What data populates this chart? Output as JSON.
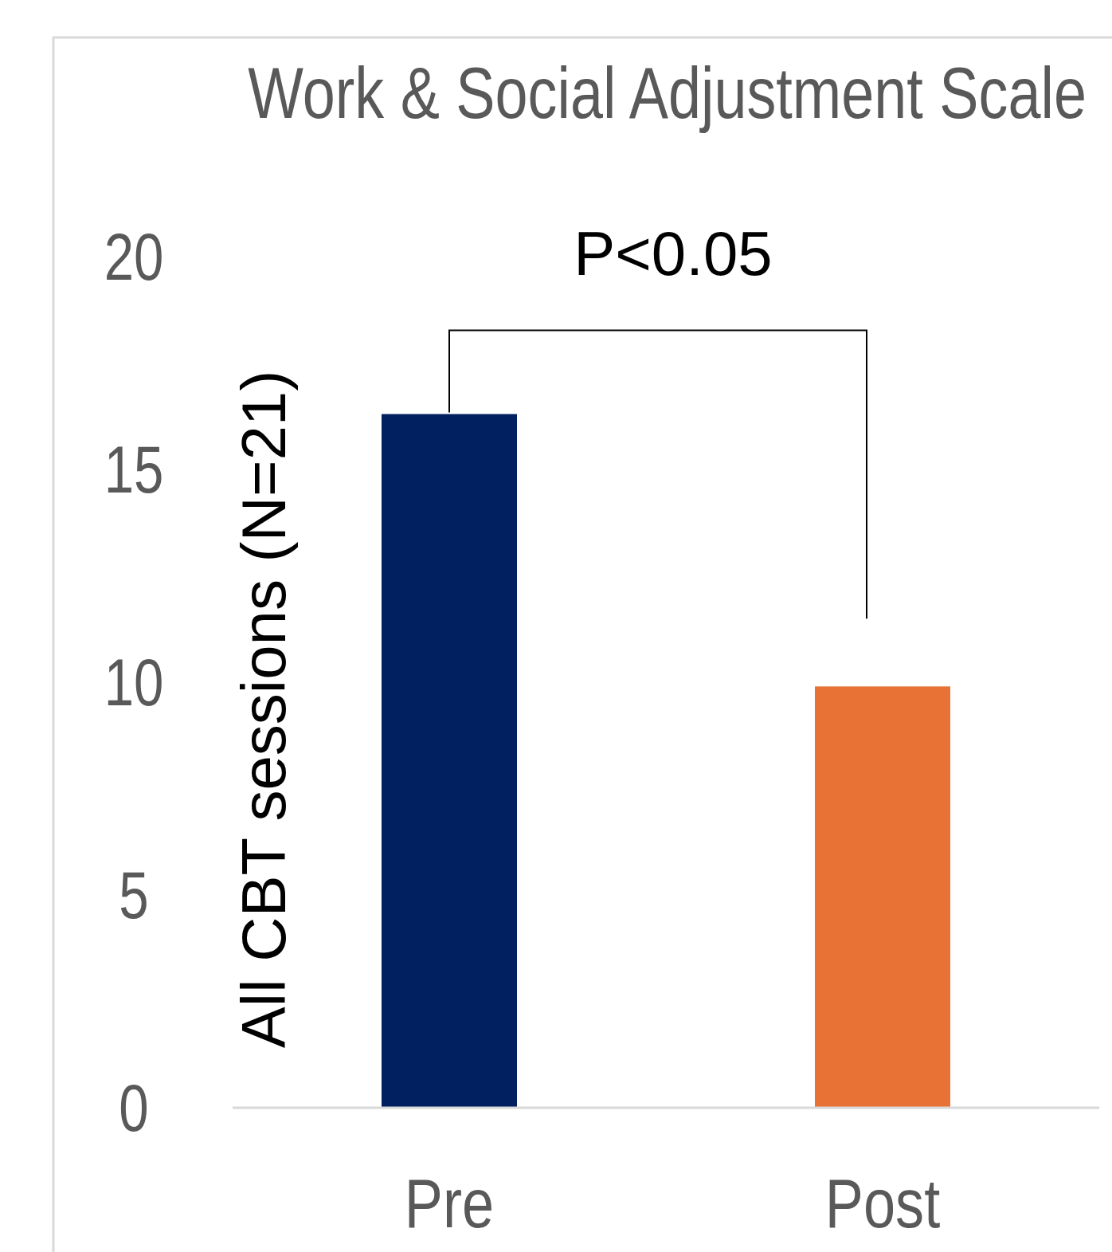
{
  "chart_data": {
    "type": "bar",
    "title": "Work & Social Adjustment Scale",
    "ylabel": "All CBT sessions (N=21)",
    "categories": [
      "Pre",
      "Post"
    ],
    "values": [
      16.3,
      9.9
    ],
    "colors": [
      "#002060",
      "#e87135"
    ],
    "ylim": [
      0,
      20
    ],
    "yticks": [
      0,
      5,
      10,
      15,
      20
    ],
    "grid": false,
    "annotations": [
      "P<0.05"
    ]
  }
}
